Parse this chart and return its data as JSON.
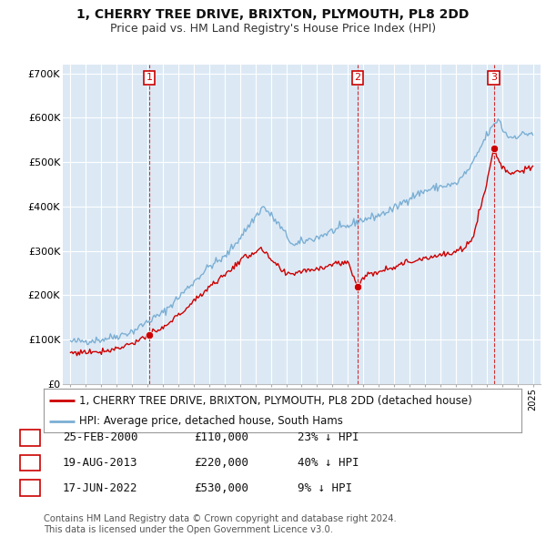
{
  "title": "1, CHERRY TREE DRIVE, BRIXTON, PLYMOUTH, PL8 2DD",
  "subtitle": "Price paid vs. HM Land Registry's House Price Index (HPI)",
  "ylim": [
    0,
    720000
  ],
  "yticks": [
    0,
    100000,
    200000,
    300000,
    400000,
    500000,
    600000,
    700000
  ],
  "ytick_labels": [
    "£0",
    "£100K",
    "£200K",
    "£300K",
    "£400K",
    "£500K",
    "£600K",
    "£700K"
  ],
  "background_color": "#ffffff",
  "plot_bg_color": "#dce9f5",
  "grid_color": "#ffffff",
  "sale_color": "#cc0000",
  "hpi_color": "#7bafd4",
  "sale_label": "1, CHERRY TREE DRIVE, BRIXTON, PLYMOUTH, PL8 2DD (detached house)",
  "hpi_label": "HPI: Average price, detached house, South Hams",
  "sales": [
    {
      "date": 2000.12,
      "price": 110000,
      "label": "1"
    },
    {
      "date": 2013.63,
      "price": 220000,
      "label": "2"
    },
    {
      "date": 2022.46,
      "price": 530000,
      "label": "3"
    }
  ],
  "sale_annotations": [
    {
      "label": "1",
      "date": "25-FEB-2000",
      "price": "£110,000",
      "hpi": "23% ↓ HPI"
    },
    {
      "label": "2",
      "date": "19-AUG-2013",
      "price": "£220,000",
      "hpi": "40% ↓ HPI"
    },
    {
      "label": "3",
      "date": "17-JUN-2022",
      "price": "£530,000",
      "hpi": "9% ↓ HPI"
    }
  ],
  "vline_dates": [
    2000.12,
    2013.63,
    2022.46
  ],
  "footnote": "Contains HM Land Registry data © Crown copyright and database right 2024.\nThis data is licensed under the Open Government Licence v3.0.",
  "title_fontsize": 10,
  "subtitle_fontsize": 9,
  "tick_fontsize": 8,
  "legend_fontsize": 8.5,
  "table_fontsize": 9
}
